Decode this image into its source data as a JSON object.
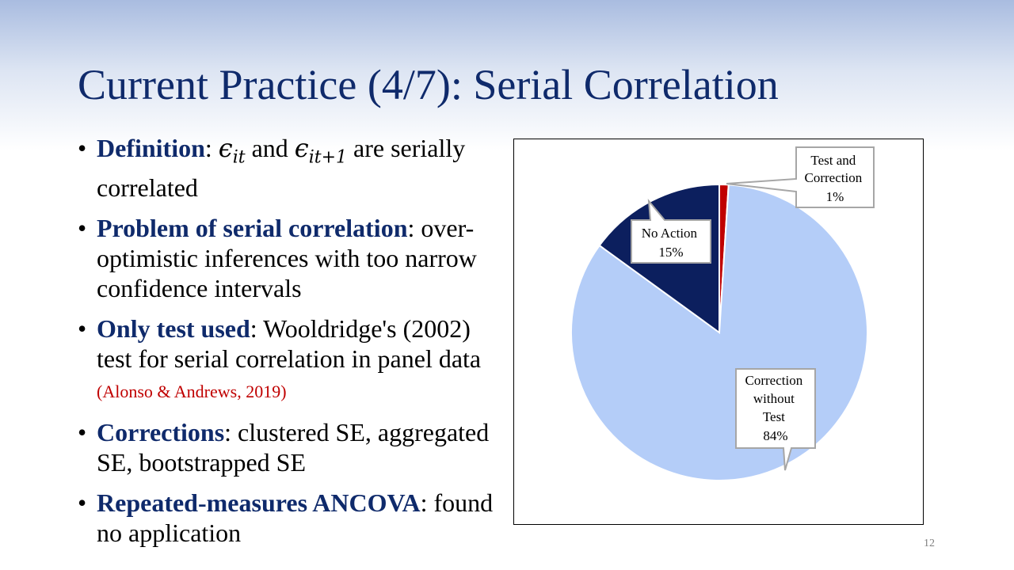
{
  "slide": {
    "title": "Current Practice (4/7): Serial Correlation",
    "page_number": "12"
  },
  "bullets": [
    {
      "term": "Definition",
      "math1_base": "ϵ",
      "math1_sub": "it",
      "conj": " and ",
      "math2_base": "ϵ",
      "math2_sub": "it+1",
      "text": " are serially correlated"
    },
    {
      "term": "Problem of serial correlation",
      "text": ": over-optimistic inferences with too narrow confidence intervals"
    },
    {
      "term": "Only test used",
      "text": ": Wooldridge's (2002) test for serial correlation in panel data ",
      "citation": "(Alonso & Andrews, 2019)"
    },
    {
      "term": "Corrections",
      "text": ": clustered SE, aggregated SE, bootstrapped SE"
    },
    {
      "term": "Repeated-measures ANCOVA",
      "text": ": found no application"
    }
  ],
  "chart_data": {
    "type": "pie",
    "slices": [
      {
        "label": "Test and Correction",
        "value": 1,
        "value_label": "1%",
        "color": "#c00000"
      },
      {
        "label": "Correction without Test",
        "value": 84,
        "value_label": "84%",
        "color": "#b4cdf8"
      },
      {
        "label": "No Action",
        "value": 15,
        "value_label": "15%",
        "color": "#0c1f5e"
      }
    ],
    "callouts": [
      {
        "lines": [
          "Test and",
          "Correction",
          "1%"
        ]
      },
      {
        "lines": [
          "No Action",
          "15%"
        ]
      },
      {
        "lines": [
          "Correction",
          "without",
          "Test",
          "84%"
        ]
      }
    ],
    "start_angle_deg": 0,
    "direction": "clockwise",
    "legend": "none"
  }
}
